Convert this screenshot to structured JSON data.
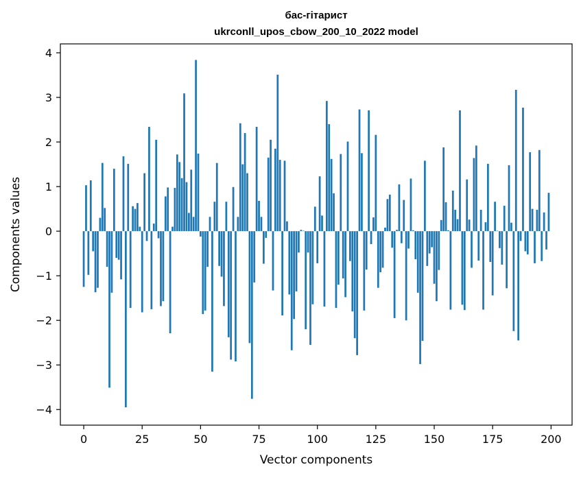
{
  "chart_data": {
    "type": "bar",
    "title": "бас-гітарист",
    "subtitle": "ukrconll_upos_cbow_200_10_2022 model",
    "xlabel": "Vector components",
    "ylabel": "Components values",
    "xlim": [
      -10,
      209
    ],
    "ylim": [
      -4.35,
      4.2
    ],
    "xticks": [
      0,
      25,
      50,
      75,
      100,
      125,
      150,
      175,
      200
    ],
    "yticks": [
      -4,
      -3,
      -2,
      -1,
      0,
      1,
      2,
      3,
      4
    ],
    "bar_color": "#1f77b4",
    "x": [
      0,
      1,
      2,
      3,
      4,
      5,
      6,
      7,
      8,
      9,
      10,
      11,
      12,
      13,
      14,
      15,
      16,
      17,
      18,
      19,
      20,
      21,
      22,
      23,
      24,
      25,
      26,
      27,
      28,
      29,
      30,
      31,
      32,
      33,
      34,
      35,
      36,
      37,
      38,
      39,
      40,
      41,
      42,
      43,
      44,
      45,
      46,
      47,
      48,
      49,
      50,
      51,
      52,
      53,
      54,
      55,
      56,
      57,
      58,
      59,
      60,
      61,
      62,
      63,
      64,
      65,
      66,
      67,
      68,
      69,
      70,
      71,
      72,
      73,
      74,
      75,
      76,
      77,
      78,
      79,
      80,
      81,
      82,
      83,
      84,
      85,
      86,
      87,
      88,
      89,
      90,
      91,
      92,
      93,
      94,
      95,
      96,
      97,
      98,
      99,
      100,
      101,
      102,
      103,
      104,
      105,
      106,
      107,
      108,
      109,
      110,
      111,
      112,
      113,
      114,
      115,
      116,
      117,
      118,
      119,
      120,
      121,
      122,
      123,
      124,
      125,
      126,
      127,
      128,
      129,
      130,
      131,
      132,
      133,
      134,
      135,
      136,
      137,
      138,
      139,
      140,
      141,
      142,
      143,
      144,
      145,
      146,
      147,
      148,
      149,
      150,
      151,
      152,
      153,
      154,
      155,
      156,
      157,
      158,
      159,
      160,
      161,
      162,
      163,
      164,
      165,
      166,
      167,
      168,
      169,
      170,
      171,
      172,
      173,
      174,
      175,
      176,
      177,
      178,
      179,
      180,
      181,
      182,
      183,
      184,
      185,
      186,
      187,
      188,
      189,
      190,
      191,
      192,
      193,
      194,
      195,
      196,
      197,
      198,
      199
    ],
    "values": [
      -1.25,
      1.03,
      -0.98,
      1.14,
      -0.45,
      -1.37,
      -1.27,
      0.3,
      1.53,
      0.52,
      -0.8,
      -3.51,
      -1.38,
      1.4,
      -0.6,
      -0.64,
      -1.08,
      1.68,
      -3.95,
      1.51,
      -1.72,
      0.56,
      0.5,
      0.63,
      0.1,
      -1.82,
      1.3,
      -0.22,
      2.34,
      -1.75,
      0.17,
      2.05,
      -0.16,
      -1.68,
      -1.57,
      0.78,
      0.98,
      -2.29,
      0.1,
      0.97,
      1.72,
      1.55,
      1.19,
      3.09,
      1.1,
      0.41,
      1.38,
      0.32,
      3.84,
      1.74,
      -0.12,
      -1.86,
      -1.78,
      -0.8,
      0.32,
      -3.15,
      0.66,
      1.53,
      -0.78,
      -1.02,
      -1.68,
      0.66,
      -2.38,
      -2.88,
      0.99,
      -2.92,
      0.32,
      2.42,
      1.5,
      2.2,
      1.3,
      -2.51,
      -3.76,
      -1.15,
      2.34,
      0.68,
      0.32,
      -0.73,
      -0.15,
      1.65,
      2.05,
      -1.33,
      1.85,
      3.51,
      1.6,
      -1.89,
      1.58,
      0.22,
      -1.42,
      -2.67,
      -1.97,
      -1.35,
      -0.48,
      0.03,
      0.01,
      -2.2,
      -0.48,
      -2.55,
      -1.64,
      0.55,
      -0.72,
      1.23,
      0.35,
      -1.69,
      2.92,
      2.4,
      1.62,
      0.85,
      -1.72,
      -1.2,
      1.73,
      -1.06,
      -1.48,
      2.01,
      -0.67,
      -1.8,
      -2.4,
      -2.78,
      2.73,
      1.75,
      -1.78,
      -0.86,
      2.71,
      -0.29,
      0.31,
      2.16,
      -1.27,
      -0.92,
      -0.82,
      0.08,
      0.72,
      0.82,
      -0.37,
      -1.95,
      0.03,
      1.05,
      -0.27,
      0.7,
      -2.0,
      -0.39,
      1.18,
      0.02,
      -0.63,
      -1.38,
      -2.98,
      -2.46,
      1.58,
      -0.78,
      -0.5,
      -0.36,
      -1.18,
      -1.57,
      -0.87,
      0.25,
      1.88,
      0.65,
      0.02,
      -1.76,
      0.91,
      0.48,
      0.27,
      2.71,
      -1.65,
      -1.77,
      1.16,
      0.26,
      -0.82,
      1.64,
      1.92,
      -0.66,
      0.48,
      -1.76,
      0.2,
      1.51,
      -0.69,
      -1.44,
      0.66,
      0.01,
      -0.38,
      -0.75,
      0.57,
      -1.28,
      1.48,
      0.19,
      -2.24,
      3.17,
      -2.45,
      -0.22,
      2.77,
      -0.45,
      -0.52,
      1.77,
      0.5,
      -0.72,
      0.48,
      1.82,
      -0.67,
      0.42,
      -0.41,
      0.86
    ]
  }
}
